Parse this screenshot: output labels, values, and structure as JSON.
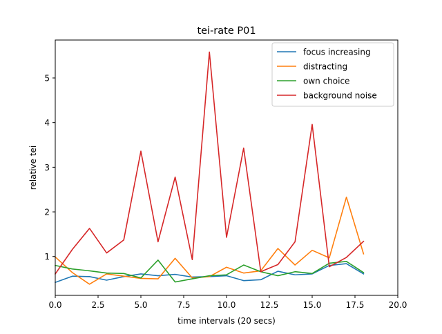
{
  "chart_data": {
    "type": "line",
    "title": "tei-rate P01",
    "xlabel": "time intervals (20 secs)",
    "ylabel": "relative tei",
    "xlim": [
      0,
      20
    ],
    "ylim": [
      0.13,
      5.85
    ],
    "xticks": [
      0,
      2.5,
      5,
      7.5,
      10,
      12.5,
      15,
      17.5,
      20
    ],
    "xtick_labels": [
      "0.0",
      "2.5",
      "5.0",
      "7.5",
      "10.0",
      "12.5",
      "15.0",
      "17.5",
      "20.0"
    ],
    "yticks": [
      1,
      2,
      3,
      4,
      5
    ],
    "ytick_labels": [
      "1",
      "2",
      "3",
      "4",
      "5"
    ],
    "grid": false,
    "legend_position": "top-right",
    "x": [
      0,
      1,
      2,
      3,
      4,
      5,
      6,
      7,
      8,
      9,
      10,
      11,
      12,
      13,
      14,
      15,
      16,
      17,
      18
    ],
    "series": [
      {
        "name": "focus increasing",
        "color": "#1f77b4",
        "values": [
          0.42,
          0.56,
          0.55,
          0.47,
          0.55,
          0.61,
          0.57,
          0.6,
          0.54,
          0.55,
          0.57,
          0.46,
          0.48,
          0.67,
          0.59,
          0.61,
          0.8,
          0.84,
          0.61
        ]
      },
      {
        "name": "distracting",
        "color": "#ff7f0e",
        "values": [
          0.99,
          0.64,
          0.38,
          0.61,
          0.56,
          0.51,
          0.5,
          0.96,
          0.52,
          0.55,
          0.76,
          0.63,
          0.68,
          1.18,
          0.81,
          1.14,
          0.97,
          2.33,
          1.06
        ]
      },
      {
        "name": "own choice",
        "color": "#2ca02c",
        "values": [
          0.8,
          0.72,
          0.68,
          0.63,
          0.62,
          0.52,
          0.92,
          0.43,
          0.5,
          0.57,
          0.59,
          0.81,
          0.66,
          0.57,
          0.66,
          0.62,
          0.85,
          0.89,
          0.64
        ]
      },
      {
        "name": "background noise",
        "color": "#d62728",
        "values": [
          0.61,
          1.16,
          1.63,
          1.08,
          1.37,
          3.36,
          1.33,
          2.78,
          0.93,
          5.58,
          1.43,
          3.43,
          0.66,
          0.82,
          1.33,
          3.96,
          0.77,
          0.98,
          1.34
        ]
      }
    ]
  }
}
